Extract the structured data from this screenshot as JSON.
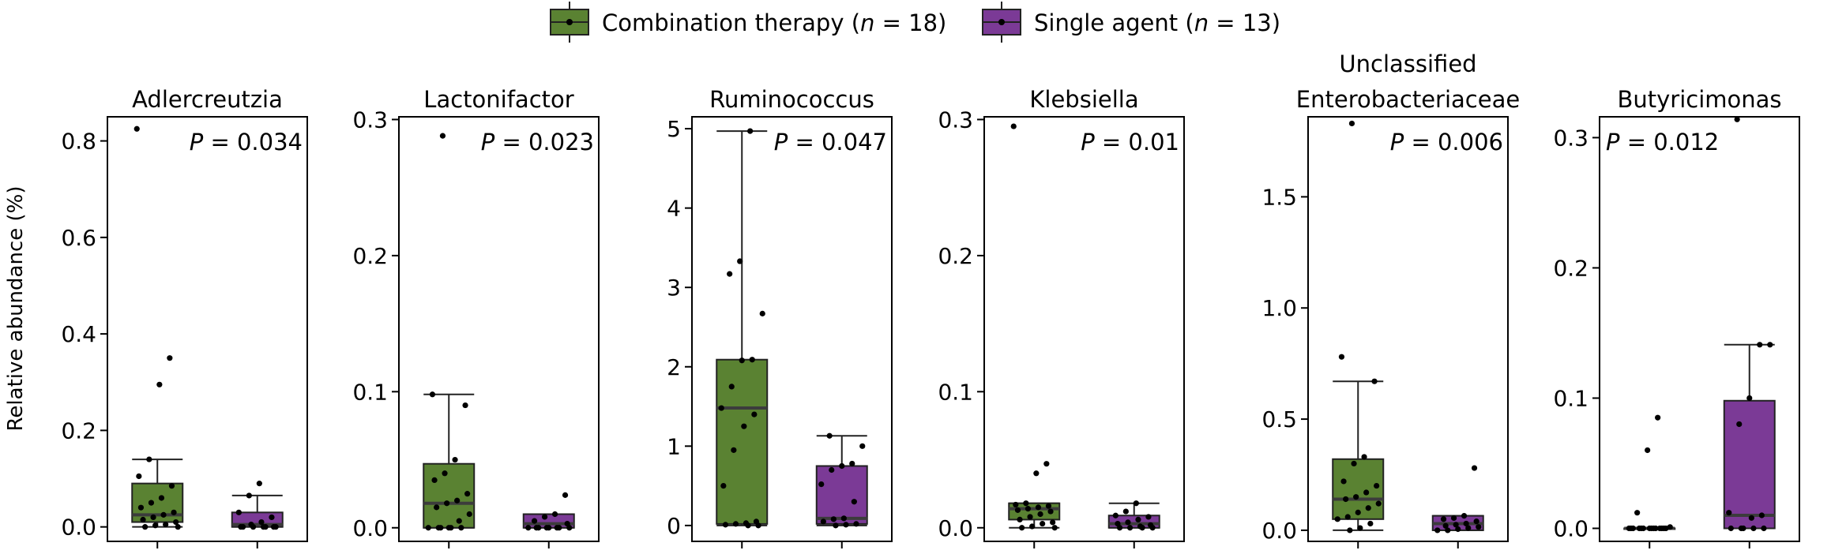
{
  "legend": {
    "items": [
      {
        "label": "Combination therapy",
        "n_text": "n",
        "n_value": " = 18)",
        "open": " (",
        "color": "#5a8232"
      },
      {
        "label": "Single agent",
        "n_text": "n",
        "n_value": " = 13)",
        "open": " (",
        "color": "#7b3a96"
      }
    ]
  },
  "ylabel": "Relative abundance (%)",
  "colors": {
    "combination": "#5a8232",
    "single": "#7b3a96",
    "median": "#3c3c3c"
  },
  "chart_data": [
    {
      "type": "box",
      "title": [
        "Adlercreutzia"
      ],
      "p_text": "= 0.034",
      "p_position": "top-right",
      "ylim": [
        -0.03,
        0.85
      ],
      "yticks": [
        0.0,
        0.2,
        0.4,
        0.6,
        0.8
      ],
      "tick_labels": [
        "0.0",
        "0.2",
        "0.4",
        "0.6",
        "0.8"
      ],
      "groups": [
        {
          "name": "Combination therapy",
          "q1": 0.01,
          "median": 0.025,
          "q3": 0.09,
          "whisker_low": 0.0,
          "whisker_high": 0.14,
          "points": [
            0.825,
            0.35,
            0.295,
            0.14,
            0.105,
            0.085,
            0.06,
            0.05,
            0.04,
            0.03,
            0.025,
            0.02,
            0.015,
            0.01,
            0.005,
            0.003,
            0.0,
            0.0
          ]
        },
        {
          "name": "Single agent",
          "q1": 0.0,
          "median": 0.005,
          "q3": 0.03,
          "whisker_low": 0.0,
          "whisker_high": 0.065,
          "points": [
            0.09,
            0.065,
            0.03,
            0.02,
            0.01,
            0.005,
            0.0,
            0.0,
            0.0,
            0.0,
            0.0,
            0.0,
            0.0
          ]
        }
      ]
    },
    {
      "type": "box",
      "title": [
        "Lactonifactor"
      ],
      "p_text": "= 0.023",
      "p_position": "top-right",
      "ylim": [
        -0.01,
        0.302
      ],
      "yticks": [
        0.0,
        0.1,
        0.2,
        0.3
      ],
      "tick_labels": [
        "0.0",
        "0.1",
        "0.2",
        "0.3"
      ],
      "groups": [
        {
          "name": "Combination therapy",
          "q1": 0.0,
          "median": 0.018,
          "q3": 0.047,
          "whisker_low": 0.0,
          "whisker_high": 0.098,
          "points": [
            0.288,
            0.098,
            0.09,
            0.05,
            0.04,
            0.035,
            0.025,
            0.02,
            0.018,
            0.015,
            0.01,
            0.005,
            0.0,
            0.0,
            0.0,
            0.0,
            0.0,
            0.0
          ]
        },
        {
          "name": "Single agent",
          "q1": 0.0,
          "median": 0.003,
          "q3": 0.01,
          "whisker_low": 0.0,
          "whisker_high": 0.01,
          "points": [
            0.024,
            0.01,
            0.008,
            0.005,
            0.003,
            0.0,
            0.0,
            0.0,
            0.0,
            0.0,
            0.0,
            0.0,
            0.0
          ]
        }
      ]
    },
    {
      "type": "box",
      "title": [
        "Ruminococcus"
      ],
      "p_text": "= 0.047",
      "p_position": "top-right",
      "ylim": [
        -0.2,
        5.15
      ],
      "yticks": [
        0,
        1,
        2,
        3,
        4,
        5
      ],
      "tick_labels": [
        "0",
        "1",
        "2",
        "3",
        "4",
        "5"
      ],
      "groups": [
        {
          "name": "Combination therapy",
          "q1": 0.02,
          "median": 1.48,
          "q3": 2.09,
          "whisker_low": 0.0,
          "whisker_high": 4.97,
          "points": [
            4.97,
            3.33,
            3.17,
            2.67,
            2.09,
            2.08,
            1.75,
            1.48,
            1.4,
            1.25,
            0.95,
            0.5,
            0.05,
            0.03,
            0.02,
            0.01,
            0.0,
            0.0
          ]
        },
        {
          "name": "Single agent",
          "q1": 0.02,
          "median": 0.09,
          "q3": 0.75,
          "whisker_low": 0.0,
          "whisker_high": 1.13,
          "points": [
            1.13,
            1.0,
            0.78,
            0.75,
            0.7,
            0.52,
            0.3,
            0.09,
            0.08,
            0.05,
            0.02,
            0.01,
            0.0
          ]
        }
      ]
    },
    {
      "type": "box",
      "title": [
        "Klebsiella"
      ],
      "p_text": "= 0.01",
      "p_position": "top-right",
      "ylim": [
        -0.01,
        0.302
      ],
      "yticks": [
        0.0,
        0.1,
        0.2,
        0.3
      ],
      "tick_labels": [
        "0.0",
        "0.1",
        "0.2",
        "0.3"
      ],
      "groups": [
        {
          "name": "Combination therapy",
          "q1": 0.006,
          "median": 0.014,
          "q3": 0.018,
          "whisker_low": 0.0,
          "whisker_high": 0.018,
          "points": [
            0.295,
            0.047,
            0.04,
            0.018,
            0.017,
            0.016,
            0.015,
            0.014,
            0.013,
            0.012,
            0.01,
            0.008,
            0.006,
            0.004,
            0.003,
            0.001,
            0.0,
            0.0
          ]
        },
        {
          "name": "Single agent",
          "q1": 0.0,
          "median": 0.003,
          "q3": 0.009,
          "whisker_low": 0.0,
          "whisker_high": 0.018,
          "points": [
            0.018,
            0.012,
            0.009,
            0.008,
            0.006,
            0.004,
            0.003,
            0.002,
            0.001,
            0.0,
            0.0,
            0.0,
            0.0
          ]
        }
      ]
    },
    {
      "type": "box",
      "title": [
        "Unclassified",
        "Enterobacteriaceae"
      ],
      "p_text": "= 0.006",
      "p_position": "top-right",
      "ylim": [
        -0.05,
        1.86
      ],
      "yticks": [
        0.0,
        0.5,
        1.0,
        1.5
      ],
      "tick_labels": [
        "0.0",
        "0.5",
        "1.0",
        "1.5"
      ],
      "groups": [
        {
          "name": "Combination therapy",
          "q1": 0.05,
          "median": 0.14,
          "q3": 0.32,
          "whisker_low": 0.0,
          "whisker_high": 0.67,
          "points": [
            1.83,
            0.78,
            0.67,
            0.33,
            0.3,
            0.22,
            0.2,
            0.17,
            0.15,
            0.14,
            0.12,
            0.1,
            0.08,
            0.06,
            0.05,
            0.03,
            0.01,
            0.0
          ]
        },
        {
          "name": "Single agent",
          "q1": 0.0,
          "median": 0.03,
          "q3": 0.065,
          "whisker_low": 0.0,
          "whisker_high": 0.065,
          "points": [
            0.28,
            0.065,
            0.055,
            0.05,
            0.04,
            0.03,
            0.025,
            0.02,
            0.015,
            0.01,
            0.005,
            0.0,
            0.0
          ]
        }
      ]
    },
    {
      "type": "box",
      "title": [
        "Butyricimonas"
      ],
      "p_text": "= 0.012",
      "p_position": "top-left",
      "ylim": [
        -0.01,
        0.316
      ],
      "yticks": [
        0.0,
        0.1,
        0.2,
        0.3
      ],
      "tick_labels": [
        "0.0",
        "0.1",
        "0.2",
        "0.3"
      ],
      "groups": [
        {
          "name": "Combination therapy",
          "q1": 0.0,
          "median": 0.0,
          "q3": 0.0,
          "whisker_low": 0.0,
          "whisker_high": 0.0,
          "points": [
            0.085,
            0.06,
            0.012,
            0.001,
            0.0,
            0.0,
            0.0,
            0.0,
            0.0,
            0.0,
            0.0,
            0.0,
            0.0,
            0.0,
            0.0,
            0.0,
            0.0,
            0.0
          ]
        },
        {
          "name": "Single agent",
          "q1": 0.0,
          "median": 0.01,
          "q3": 0.098,
          "whisker_low": 0.0,
          "whisker_high": 0.141,
          "points": [
            0.314,
            0.141,
            0.141,
            0.1,
            0.08,
            0.012,
            0.01,
            0.008,
            0.0,
            0.0,
            0.0,
            0.0,
            0.0
          ]
        }
      ]
    }
  ]
}
